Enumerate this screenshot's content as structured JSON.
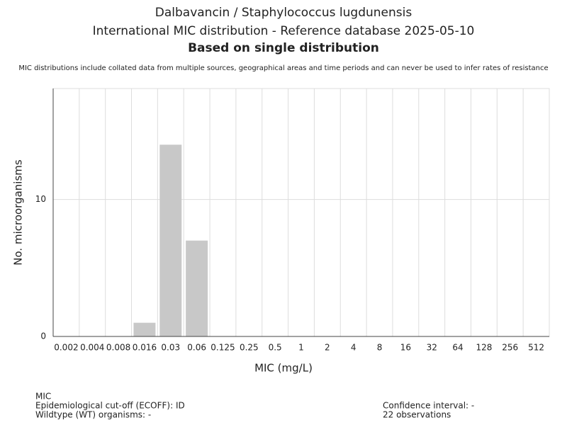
{
  "chart_data": {
    "type": "bar",
    "title": "Dalbavancin / Staphylococcus lugdunensis",
    "subtitle": "International MIC distribution - Reference database 2025-05-10",
    "subtitle_bold": "Based on single distribution",
    "note": "MIC distributions include collated data from multiple sources, geographical areas and time periods and can never be used to infer rates of resistance",
    "x_label": "MIC (mg/L)",
    "y_label": "No. microorganisms",
    "categories": [
      "0.002",
      "0.004",
      "0.008",
      "0.016",
      "0.03",
      "0.06",
      "0.125",
      "0.25",
      "0.5",
      "1",
      "2",
      "4",
      "8",
      "16",
      "32",
      "64",
      "128",
      "256",
      "512"
    ],
    "values": [
      0,
      0,
      0,
      1,
      14,
      7,
      0,
      0,
      0,
      0,
      0,
      0,
      0,
      0,
      0,
      0,
      0,
      0,
      0
    ],
    "color": "#c8c8c8",
    "ylim": [
      0,
      18.1
    ],
    "yticks": [
      0,
      10
    ],
    "grid": true,
    "footer_left": [
      "MIC",
      "Epidemiological cut-off (ECOFF): ID",
      "Wildtype (WT) organisms:  -"
    ],
    "footer_right": [
      "Confidence interval: -",
      "22 observations"
    ]
  }
}
